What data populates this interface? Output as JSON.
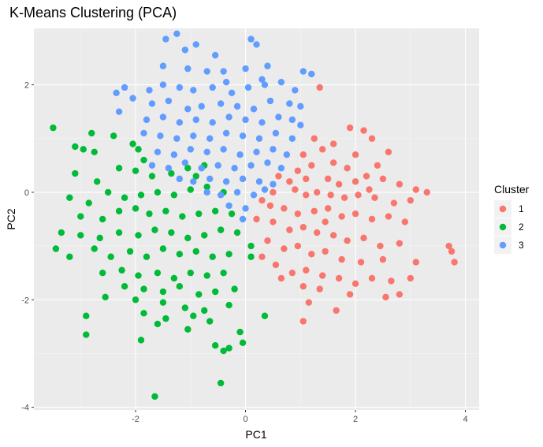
{
  "chart_data": {
    "type": "scatter",
    "title": "K-Means Clustering (PCA)",
    "xlabel": "PC1",
    "ylabel": "PC2",
    "xlim": [
      -3.85,
      4.25
    ],
    "ylim": [
      -4.05,
      3.05
    ],
    "x_ticks": [
      -2,
      0,
      2,
      4
    ],
    "y_ticks": [
      -4,
      -2,
      0,
      2
    ],
    "grid": true,
    "legend_position": "right",
    "legend_title": "Cluster",
    "series": [
      {
        "name": "1",
        "color": "#F8766D",
        "points": [
          [
            1.35,
            1.95
          ],
          [
            2.15,
            1.15
          ],
          [
            1.9,
            1.2
          ],
          [
            1.25,
            1.0
          ],
          [
            1.6,
            0.9
          ],
          [
            2.3,
            1.0
          ],
          [
            1.05,
            0.7
          ],
          [
            1.4,
            0.8
          ],
          [
            2.0,
            0.7
          ],
          [
            2.6,
            0.75
          ],
          [
            0.95,
            0.4
          ],
          [
            1.2,
            0.5
          ],
          [
            1.6,
            0.55
          ],
          [
            1.85,
            0.45
          ],
          [
            2.4,
            0.5
          ],
          [
            0.8,
            0.2
          ],
          [
            1.5,
            0.25
          ],
          [
            1.7,
            0.15
          ],
          [
            2.0,
            0.2
          ],
          [
            2.2,
            0.3
          ],
          [
            2.5,
            0.25
          ],
          [
            2.8,
            0.15
          ],
          [
            3.1,
            0.05
          ],
          [
            3.3,
            0.0
          ],
          [
            0.5,
            0.0
          ],
          [
            0.9,
            0.05
          ],
          [
            1.1,
            -0.05
          ],
          [
            1.3,
            0.0
          ],
          [
            1.55,
            -0.05
          ],
          [
            1.8,
            -0.1
          ],
          [
            2.05,
            -0.05
          ],
          [
            2.35,
            -0.1
          ],
          [
            2.7,
            -0.2
          ],
          [
            3.0,
            -0.15
          ],
          [
            0.45,
            -0.25
          ],
          [
            0.7,
            -0.3
          ],
          [
            0.95,
            -0.4
          ],
          [
            1.25,
            -0.35
          ],
          [
            1.5,
            -0.3
          ],
          [
            1.75,
            -0.45
          ],
          [
            2.0,
            -0.4
          ],
          [
            2.3,
            -0.5
          ],
          [
            2.6,
            -0.45
          ],
          [
            2.9,
            -0.55
          ],
          [
            0.2,
            -0.5
          ],
          [
            0.5,
            -0.55
          ],
          [
            0.8,
            -0.7
          ],
          [
            1.05,
            -0.65
          ],
          [
            1.3,
            -0.75
          ],
          [
            1.6,
            -0.8
          ],
          [
            1.85,
            -0.9
          ],
          [
            2.15,
            -0.85
          ],
          [
            2.45,
            -1.0
          ],
          [
            2.8,
            -0.95
          ],
          [
            0.4,
            -0.9
          ],
          [
            0.7,
            -1.05
          ],
          [
            0.95,
            -1.0
          ],
          [
            1.2,
            -1.15
          ],
          [
            1.45,
            -1.1
          ],
          [
            1.75,
            -1.25
          ],
          [
            2.1,
            -1.3
          ],
          [
            2.5,
            -1.25
          ],
          [
            3.1,
            -1.3
          ],
          [
            3.7,
            -1.0
          ],
          [
            3.75,
            -1.1
          ],
          [
            3.8,
            -1.3
          ],
          [
            0.3,
            -1.2
          ],
          [
            0.55,
            -1.35
          ],
          [
            0.85,
            -1.5
          ],
          [
            1.1,
            -1.45
          ],
          [
            1.4,
            -1.55
          ],
          [
            1.7,
            -1.6
          ],
          [
            2.0,
            -1.7
          ],
          [
            2.3,
            -1.6
          ],
          [
            2.65,
            -1.65
          ],
          [
            3.0,
            -1.6
          ],
          [
            0.65,
            -1.6
          ],
          [
            1.05,
            -1.75
          ],
          [
            1.35,
            -1.8
          ],
          [
            1.9,
            -1.9
          ],
          [
            2.55,
            -1.95
          ],
          [
            2.8,
            -1.9
          ],
          [
            1.15,
            -2.05
          ],
          [
            1.65,
            -2.2
          ],
          [
            1.05,
            -2.4
          ],
          [
            0.3,
            -0.15
          ],
          [
            0.6,
            0.3
          ],
          [
            1.1,
            0.25
          ],
          [
            2.25,
            0.05
          ],
          [
            1.45,
            -0.55
          ]
        ]
      },
      {
        "name": "2",
        "color": "#00BA38",
        "points": [
          [
            -3.5,
            1.2
          ],
          [
            -3.1,
            0.85
          ],
          [
            -2.95,
            0.8
          ],
          [
            -2.75,
            0.75
          ],
          [
            -2.8,
            1.1
          ],
          [
            -2.4,
            1.05
          ],
          [
            -2.05,
            0.9
          ],
          [
            -1.95,
            0.8
          ],
          [
            -1.85,
            0.6
          ],
          [
            -3.1,
            0.35
          ],
          [
            -2.7,
            0.2
          ],
          [
            -2.3,
            0.45
          ],
          [
            -2.0,
            0.4
          ],
          [
            -1.7,
            0.3
          ],
          [
            -1.35,
            0.35
          ],
          [
            -1.05,
            0.45
          ],
          [
            -0.75,
            0.5
          ],
          [
            -3.2,
            -0.1
          ],
          [
            -2.85,
            -0.2
          ],
          [
            -2.5,
            0.0
          ],
          [
            -2.2,
            -0.1
          ],
          [
            -1.9,
            -0.05
          ],
          [
            -1.6,
            0.0
          ],
          [
            -1.3,
            -0.05
          ],
          [
            -1.0,
            0.05
          ],
          [
            -0.7,
            0.1
          ],
          [
            -0.4,
            0.0
          ],
          [
            -3.0,
            -0.45
          ],
          [
            -2.6,
            -0.5
          ],
          [
            -2.3,
            -0.35
          ],
          [
            -2.0,
            -0.3
          ],
          [
            -1.75,
            -0.4
          ],
          [
            -1.45,
            -0.35
          ],
          [
            -1.15,
            -0.45
          ],
          [
            -0.85,
            -0.4
          ],
          [
            -0.55,
            -0.35
          ],
          [
            -0.25,
            -0.4
          ],
          [
            -3.35,
            -0.75
          ],
          [
            -3.0,
            -0.8
          ],
          [
            -2.65,
            -0.85
          ],
          [
            -2.3,
            -0.75
          ],
          [
            -1.95,
            -0.8
          ],
          [
            -1.65,
            -0.7
          ],
          [
            -1.35,
            -0.75
          ],
          [
            -1.05,
            -0.85
          ],
          [
            -0.75,
            -0.8
          ],
          [
            -0.45,
            -0.7
          ],
          [
            -0.15,
            -0.75
          ],
          [
            -3.45,
            -1.05
          ],
          [
            -3.2,
            -1.2
          ],
          [
            -2.75,
            -1.05
          ],
          [
            -2.45,
            -1.2
          ],
          [
            -2.1,
            -1.1
          ],
          [
            -1.8,
            -1.2
          ],
          [
            -1.5,
            -1.05
          ],
          [
            -1.2,
            -1.15
          ],
          [
            -0.9,
            -1.1
          ],
          [
            -0.6,
            -1.2
          ],
          [
            -0.3,
            -1.15
          ],
          [
            0.1,
            -1.2
          ],
          [
            -2.6,
            -1.5
          ],
          [
            -2.25,
            -1.45
          ],
          [
            -1.95,
            -1.55
          ],
          [
            -1.6,
            -1.5
          ],
          [
            -1.3,
            -1.6
          ],
          [
            -1.0,
            -1.5
          ],
          [
            -0.7,
            -1.55
          ],
          [
            -0.4,
            -1.5
          ],
          [
            -2.2,
            -1.75
          ],
          [
            -1.85,
            -1.8
          ],
          [
            -1.5,
            -1.85
          ],
          [
            -1.2,
            -1.75
          ],
          [
            -0.85,
            -1.9
          ],
          [
            -0.55,
            -1.85
          ],
          [
            -0.2,
            -1.8
          ],
          [
            -2.55,
            -1.95
          ],
          [
            -2.0,
            -2.0
          ],
          [
            -1.5,
            -2.05
          ],
          [
            -1.1,
            -2.15
          ],
          [
            -0.75,
            -2.2
          ],
          [
            -0.3,
            -2.1
          ],
          [
            -1.85,
            -2.25
          ],
          [
            -1.45,
            -2.35
          ],
          [
            -0.95,
            -2.3
          ],
          [
            -2.9,
            -2.3
          ],
          [
            -1.6,
            -2.45
          ],
          [
            -1.05,
            -2.55
          ],
          [
            -0.65,
            -2.4
          ],
          [
            0.35,
            -2.3
          ],
          [
            -1.9,
            -2.75
          ],
          [
            -0.1,
            -2.6
          ],
          [
            -2.9,
            -2.65
          ],
          [
            -0.05,
            -2.8
          ],
          [
            -0.55,
            -2.85
          ],
          [
            -0.4,
            -2.95
          ],
          [
            -0.3,
            -2.9
          ],
          [
            -0.45,
            -3.55
          ],
          [
            -1.65,
            -3.8
          ],
          [
            0.1,
            -1.0
          ],
          [
            -0.9,
            0.3
          ]
        ]
      },
      {
        "name": "3",
        "color": "#619CFF",
        "points": [
          [
            -1.45,
            2.85
          ],
          [
            -1.25,
            2.95
          ],
          [
            -1.1,
            2.65
          ],
          [
            0.1,
            2.85
          ],
          [
            0.2,
            2.75
          ],
          [
            -1.5,
            2.35
          ],
          [
            -1.05,
            2.3
          ],
          [
            -0.7,
            2.25
          ],
          [
            -0.4,
            2.25
          ],
          [
            0.0,
            2.3
          ],
          [
            0.3,
            2.1
          ],
          [
            1.05,
            2.25
          ],
          [
            1.2,
            2.2
          ],
          [
            -2.2,
            1.95
          ],
          [
            -1.75,
            1.9
          ],
          [
            -1.5,
            2.0
          ],
          [
            -1.2,
            1.95
          ],
          [
            -0.95,
            1.9
          ],
          [
            -0.6,
            1.95
          ],
          [
            -0.35,
            2.05
          ],
          [
            0.05,
            1.95
          ],
          [
            0.35,
            2.0
          ],
          [
            0.65,
            2.05
          ],
          [
            0.9,
            1.9
          ],
          [
            -2.05,
            1.75
          ],
          [
            -1.7,
            1.65
          ],
          [
            -1.4,
            1.7
          ],
          [
            -1.05,
            1.55
          ],
          [
            -0.8,
            1.6
          ],
          [
            -0.45,
            1.65
          ],
          [
            -0.15,
            1.6
          ],
          [
            0.15,
            1.55
          ],
          [
            0.45,
            1.7
          ],
          [
            0.8,
            1.65
          ],
          [
            1.0,
            1.6
          ],
          [
            -2.3,
            1.5
          ],
          [
            -1.8,
            1.35
          ],
          [
            -1.5,
            1.4
          ],
          [
            -1.2,
            1.3
          ],
          [
            -0.9,
            1.35
          ],
          [
            -0.6,
            1.3
          ],
          [
            -0.3,
            1.4
          ],
          [
            0.0,
            1.35
          ],
          [
            0.3,
            1.3
          ],
          [
            0.6,
            1.4
          ],
          [
            0.85,
            1.35
          ],
          [
            -1.85,
            1.1
          ],
          [
            -1.55,
            1.05
          ],
          [
            -1.25,
            1.0
          ],
          [
            -0.95,
            1.05
          ],
          [
            -0.65,
            1.0
          ],
          [
            -0.35,
            1.1
          ],
          [
            -0.05,
            1.05
          ],
          [
            0.25,
            1.0
          ],
          [
            0.55,
            1.1
          ],
          [
            0.85,
            1.0
          ],
          [
            -1.6,
            0.75
          ],
          [
            -1.3,
            0.7
          ],
          [
            -1.0,
            0.8
          ],
          [
            -0.7,
            0.75
          ],
          [
            -0.4,
            0.8
          ],
          [
            -0.1,
            0.7
          ],
          [
            0.2,
            0.75
          ],
          [
            0.5,
            0.8
          ],
          [
            0.75,
            0.7
          ],
          [
            -1.7,
            0.5
          ],
          [
            -1.4,
            0.45
          ],
          [
            -1.1,
            0.55
          ],
          [
            -0.8,
            0.45
          ],
          [
            -0.5,
            0.5
          ],
          [
            -0.2,
            0.45
          ],
          [
            0.1,
            0.5
          ],
          [
            0.4,
            0.55
          ],
          [
            0.65,
            0.45
          ],
          [
            -1.2,
            0.25
          ],
          [
            -0.95,
            0.2
          ],
          [
            -0.65,
            0.25
          ],
          [
            -0.35,
            0.2
          ],
          [
            -0.05,
            0.25
          ],
          [
            0.25,
            0.2
          ],
          [
            0.5,
            0.15
          ],
          [
            -0.7,
            0.0
          ],
          [
            -0.45,
            -0.05
          ],
          [
            -0.15,
            0.0
          ],
          [
            0.15,
            -0.05
          ],
          [
            0.35,
            0.05
          ],
          [
            -0.3,
            -0.25
          ],
          [
            0.0,
            -0.3
          ],
          [
            -0.05,
            -0.5
          ],
          [
            -2.35,
            1.85
          ],
          [
            -0.55,
            2.55
          ],
          [
            0.4,
            2.35
          ],
          [
            -0.9,
            2.75
          ],
          [
            1.0,
            1.25
          ],
          [
            -0.25,
            1.85
          ]
        ]
      }
    ]
  }
}
